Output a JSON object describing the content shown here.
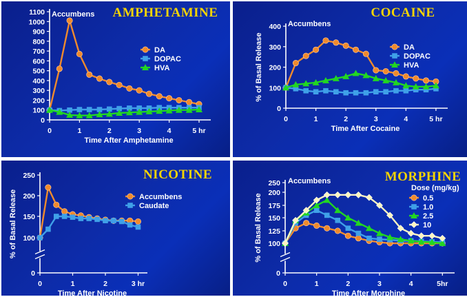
{
  "chart_data": [
    {
      "type": "line",
      "title": "AMPHETAMINE",
      "subtitle": "Accumbens",
      "xlabel": "Time After Amphetamine",
      "ylabel": "",
      "xlim": [
        0,
        5.3
      ],
      "ylim": [
        0,
        1100
      ],
      "xticks": [
        0,
        1,
        2,
        3,
        4,
        5
      ],
      "xtick_labels": [
        "0",
        "1",
        "2",
        "3",
        "4",
        "5 hr"
      ],
      "yticks": [
        0,
        100,
        200,
        300,
        400,
        500,
        600,
        700,
        800,
        900,
        1000,
        1100
      ],
      "ytick_labels": [
        "0",
        "100",
        "200",
        "300",
        "400",
        "500",
        "600",
        "700",
        "800",
        "900",
        "1000",
        "1100"
      ],
      "axis_break": false,
      "legend": "right",
      "series": [
        {
          "name": "DA",
          "color": "#f08a2c",
          "marker": "circle",
          "x": [
            0,
            0.33,
            0.67,
            1.0,
            1.33,
            1.67,
            2.0,
            2.33,
            2.67,
            3.0,
            3.33,
            3.67,
            4.0,
            4.33,
            4.67,
            5.0
          ],
          "y": [
            100,
            520,
            1010,
            670,
            460,
            420,
            385,
            355,
            320,
            300,
            265,
            240,
            220,
            200,
            180,
            160
          ]
        },
        {
          "name": "DOPAC",
          "color": "#3fa0e8",
          "marker": "square",
          "x": [
            0,
            0.33,
            0.67,
            1.0,
            1.33,
            1.67,
            2.0,
            2.33,
            2.67,
            3.0,
            3.33,
            3.67,
            4.0,
            4.33,
            4.67,
            5.0
          ],
          "y": [
            100,
            95,
            100,
            105,
            105,
            105,
            110,
            115,
            120,
            120,
            120,
            125,
            125,
            125,
            125,
            125
          ]
        },
        {
          "name": "HVA",
          "color": "#22d622",
          "marker": "triangle",
          "x": [
            0,
            0.33,
            0.67,
            1.0,
            1.33,
            1.67,
            2.0,
            2.33,
            2.67,
            3.0,
            3.33,
            3.67,
            4.0,
            4.33,
            4.67,
            5.0
          ],
          "y": [
            100,
            80,
            50,
            45,
            45,
            55,
            60,
            70,
            75,
            80,
            85,
            90,
            95,
            100,
            100,
            105
          ]
        }
      ]
    },
    {
      "type": "line",
      "title": "COCAINE",
      "subtitle": "Accumbens",
      "xlabel": "Time After Cocaine",
      "ylabel": "% of Basal Release",
      "xlim": [
        0,
        5.3
      ],
      "ylim": [
        0,
        400
      ],
      "xticks": [
        0,
        1,
        2,
        3,
        4,
        5
      ],
      "xtick_labels": [
        "0",
        "1",
        "2",
        "3",
        "4",
        "5 hr"
      ],
      "yticks": [
        0,
        100,
        200,
        300,
        400
      ],
      "ytick_labels": [
        "0",
        "100",
        "200",
        "300",
        "400"
      ],
      "axis_break": false,
      "legend": "right",
      "series": [
        {
          "name": "DA",
          "color": "#f08a2c",
          "marker": "circle",
          "x": [
            0,
            0.33,
            0.67,
            1.0,
            1.33,
            1.67,
            2.0,
            2.33,
            2.67,
            3.0,
            3.33,
            3.67,
            4.0,
            4.33,
            4.67,
            5.0
          ],
          "y": [
            100,
            220,
            255,
            285,
            330,
            320,
            305,
            285,
            265,
            185,
            180,
            170,
            155,
            145,
            135,
            130
          ]
        },
        {
          "name": "DOPAC",
          "color": "#3fa0e8",
          "marker": "square",
          "x": [
            0,
            0.33,
            0.67,
            1.0,
            1.33,
            1.67,
            2.0,
            2.33,
            2.67,
            3.0,
            3.33,
            3.67,
            4.0,
            4.33,
            4.67,
            5.0
          ],
          "y": [
            100,
            95,
            85,
            80,
            85,
            80,
            75,
            75,
            75,
            80,
            80,
            85,
            85,
            90,
            90,
            95
          ]
        },
        {
          "name": "HVA",
          "color": "#22d622",
          "marker": "triangle",
          "x": [
            0,
            0.33,
            0.67,
            1.0,
            1.33,
            1.67,
            2.0,
            2.33,
            2.67,
            3.0,
            3.33,
            3.67,
            4.0,
            4.33,
            4.67,
            5.0
          ],
          "y": [
            100,
            115,
            120,
            125,
            135,
            145,
            155,
            170,
            160,
            145,
            135,
            125,
            110,
            105,
            105,
            110
          ]
        }
      ]
    },
    {
      "type": "line",
      "title": "NICOTINE",
      "subtitle": "",
      "xlabel": "Time After Nicotine",
      "ylabel": "% of Basal Release",
      "xlim": [
        0,
        3.2
      ],
      "ylim": [
        0,
        250
      ],
      "xticks": [
        0,
        1,
        2,
        3
      ],
      "xtick_labels": [
        "0",
        "1",
        "2",
        "3 hr"
      ],
      "yticks": [
        0,
        100,
        150,
        200,
        250
      ],
      "ytick_labels": [
        "0",
        "100",
        "150",
        "200",
        "250"
      ],
      "axis_break": true,
      "legend": "right",
      "series": [
        {
          "name": "Accumbens",
          "color": "#f08a2c",
          "marker": "circle",
          "x": [
            0,
            0.25,
            0.5,
            0.75,
            1.0,
            1.25,
            1.5,
            1.75,
            2.0,
            2.25,
            2.5,
            2.75,
            3.0
          ],
          "y": [
            100,
            220,
            178,
            162,
            155,
            152,
            148,
            145,
            142,
            140,
            140,
            140,
            138
          ]
        },
        {
          "name": "Caudate",
          "color": "#3fa0e8",
          "marker": "square",
          "x": [
            0,
            0.25,
            0.5,
            0.75,
            1.0,
            1.25,
            1.5,
            1.75,
            2.0,
            2.25,
            2.5,
            2.75,
            3.0
          ],
          "y": [
            100,
            120,
            150,
            150,
            148,
            145,
            145,
            143,
            140,
            140,
            138,
            130,
            125
          ]
        }
      ]
    },
    {
      "type": "line",
      "title": "MORPHINE",
      "subtitle": "Accumbens",
      "xlabel": "Time After Morphine",
      "ylabel": "% of Basal Release",
      "xlim": [
        0,
        5.3
      ],
      "ylim": [
        0,
        250
      ],
      "xticks": [
        0,
        1,
        2,
        3,
        4,
        5
      ],
      "xtick_labels": [
        "0",
        "1",
        "2",
        "3",
        "4",
        "5hr"
      ],
      "yticks": [
        0,
        100,
        125,
        150,
        175,
        200,
        250
      ],
      "ytick_labels": [
        "0",
        "100",
        "125",
        "150",
        "175",
        "200",
        "250"
      ],
      "axis_break": true,
      "legend": "right",
      "legend_title": "Dose (mg/kg)",
      "series": [
        {
          "name": "0.5",
          "color": "#f08a2c",
          "marker": "circle",
          "x": [
            0,
            0.33,
            0.67,
            1.0,
            1.33,
            1.67,
            2.0,
            2.33,
            2.67,
            3.0,
            3.33,
            3.67,
            4.0,
            4.33,
            4.67,
            5.0
          ],
          "y": [
            100,
            130,
            140,
            135,
            130,
            125,
            115,
            110,
            105,
            102,
            100,
            100,
            100,
            100,
            100,
            100
          ]
        },
        {
          "name": "1.0",
          "color": "#3fa0e8",
          "marker": "square",
          "x": [
            0,
            0.33,
            0.67,
            1.0,
            1.33,
            1.67,
            2.0,
            2.33,
            2.67,
            3.0,
            3.33,
            3.67,
            4.0,
            4.33,
            4.67,
            5.0
          ],
          "y": [
            100,
            140,
            155,
            165,
            155,
            145,
            130,
            120,
            110,
            108,
            107,
            105,
            105,
            104,
            103,
            102
          ]
        },
        {
          "name": "2.5",
          "color": "#22d622",
          "marker": "triangle",
          "x": [
            0,
            0.33,
            0.67,
            1.0,
            1.33,
            1.67,
            2.0,
            2.33,
            2.67,
            3.0,
            3.33,
            3.67,
            4.0,
            4.33,
            4.67,
            5.0
          ],
          "y": [
            100,
            145,
            160,
            175,
            185,
            165,
            150,
            140,
            130,
            120,
            112,
            108,
            105,
            103,
            102,
            100
          ]
        },
        {
          "name": "10",
          "color": "#fff6c0",
          "marker": "diamond",
          "x": [
            0,
            0.33,
            0.67,
            1.0,
            1.33,
            1.67,
            2.0,
            2.33,
            2.67,
            3.0,
            3.33,
            3.67,
            4.0,
            4.33,
            4.67,
            5.0
          ],
          "y": [
            100,
            145,
            165,
            185,
            195,
            195,
            195,
            195,
            190,
            175,
            155,
            130,
            120,
            115,
            115,
            110
          ]
        }
      ]
    }
  ]
}
